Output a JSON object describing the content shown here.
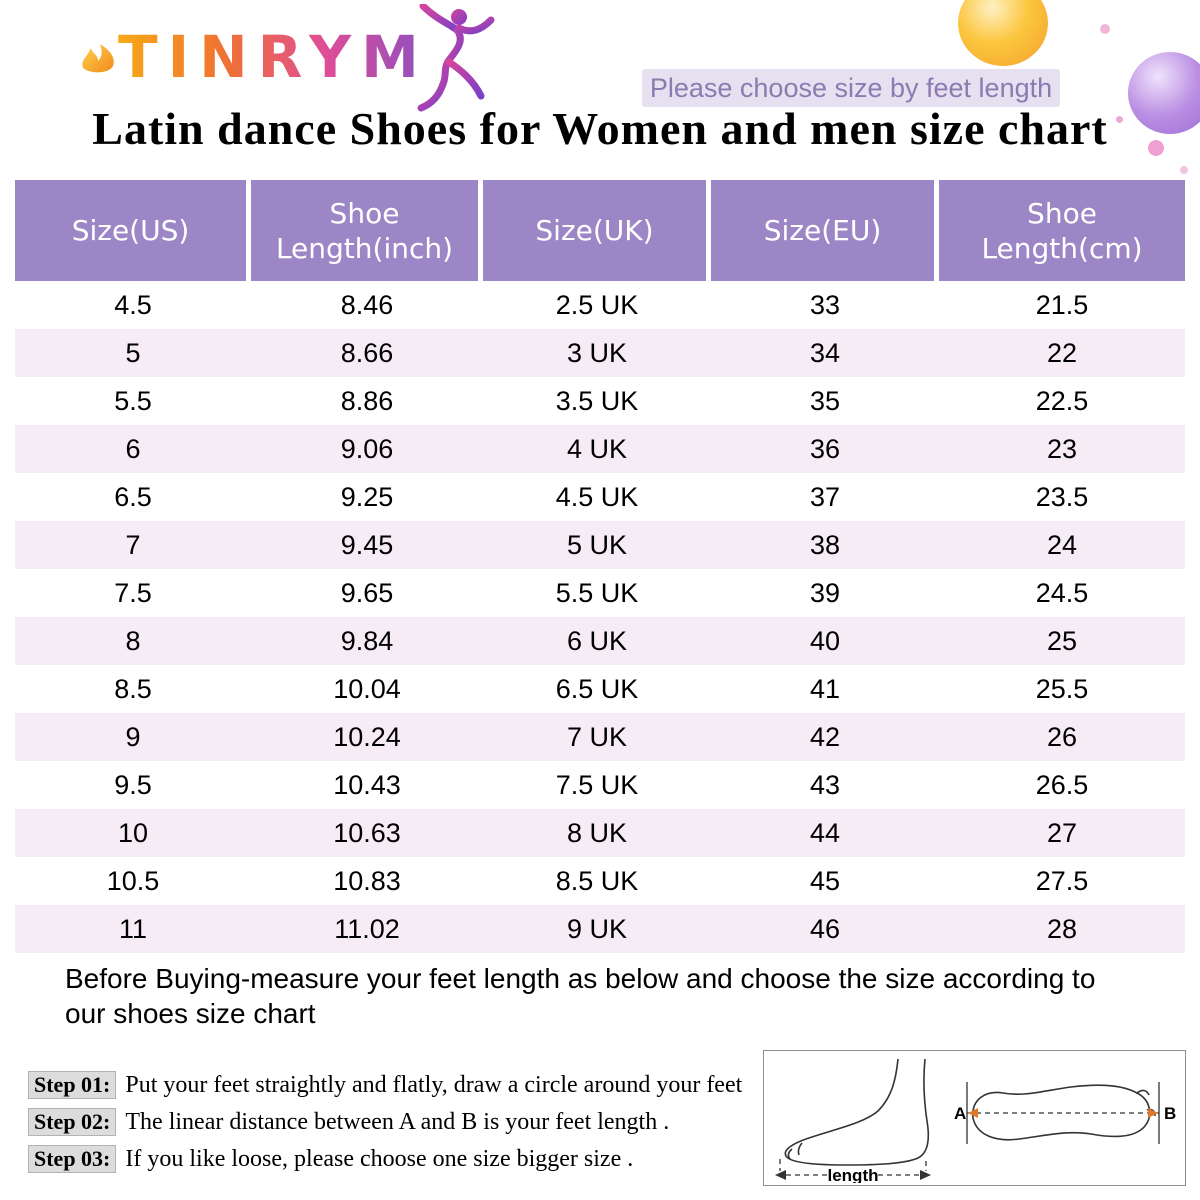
{
  "brand": {
    "logo_text": "TINRYM",
    "tagline": "Please choose size by feet length"
  },
  "title": "Latin dance Shoes for Women and men size chart",
  "table": {
    "columns": [
      "Size(US)",
      "Shoe Length(inch)",
      "Size(UK)",
      "Size(EU)",
      "Shoe Length(cm)"
    ],
    "rows": [
      [
        "4.5",
        "8.46",
        "2.5 UK",
        "33",
        "21.5"
      ],
      [
        "5",
        "8.66",
        "3 UK",
        "34",
        "22"
      ],
      [
        "5.5",
        "8.86",
        "3.5 UK",
        "35",
        "22.5"
      ],
      [
        "6",
        "9.06",
        "4 UK",
        "36",
        "23"
      ],
      [
        "6.5",
        "9.25",
        "4.5 UK",
        "37",
        "23.5"
      ],
      [
        "7",
        "9.45",
        "5 UK",
        "38",
        "24"
      ],
      [
        "7.5",
        "9.65",
        "5.5 UK",
        "39",
        "24.5"
      ],
      [
        "8",
        "9.84",
        "6 UK",
        "40",
        "25"
      ],
      [
        "8.5",
        "10.04",
        "6.5 UK",
        "41",
        "25.5"
      ],
      [
        "9",
        "10.24",
        "7 UK",
        "42",
        "26"
      ],
      [
        "9.5",
        "10.43",
        "7.5 UK",
        "43",
        "26.5"
      ],
      [
        "10",
        "10.63",
        "8 UK",
        "44",
        "27"
      ],
      [
        "10.5",
        "10.83",
        "8.5 UK",
        "45",
        "27.5"
      ],
      [
        "11",
        "11.02",
        "9 UK",
        "46",
        "28"
      ]
    ]
  },
  "note": "Before Buying-measure your feet length as below and choose the size  according to our shoes size chart",
  "steps": [
    {
      "label": "Step 01:",
      "text": "Put your feet straightly and flatly, draw a circle around your feet"
    },
    {
      "label": "Step 02:",
      "text": "The linear distance between A and B is your feet length ."
    },
    {
      "label": "Step 03:",
      "text": "If you like loose, please choose one size bigger size ."
    }
  ],
  "diagram": {
    "length_label": "length",
    "point_a": "A",
    "point_b": "B"
  },
  "colors": {
    "table_header": "#9c86c5",
    "row_alt": "#f5ecf6",
    "tagline_bg": "#e7e0f1",
    "tagline_text": "#8a7bb0",
    "accent_arrow": "#e0782a",
    "logo_gradient": [
      "#f8a917",
      "#f07330",
      "#df4d97",
      "#8d50c0"
    ]
  },
  "chart_data": {
    "type": "table",
    "title": "Latin dance Shoes for Women and men size chart",
    "columns": [
      "Size(US)",
      "Shoe Length(inch)",
      "Size(UK)",
      "Size(EU)",
      "Shoe Length(cm)"
    ],
    "rows": [
      [
        "4.5",
        "8.46",
        "2.5 UK",
        "33",
        "21.5"
      ],
      [
        "5",
        "8.66",
        "3 UK",
        "34",
        "22"
      ],
      [
        "5.5",
        "8.86",
        "3.5 UK",
        "35",
        "22.5"
      ],
      [
        "6",
        "9.06",
        "4 UK",
        "36",
        "23"
      ],
      [
        "6.5",
        "9.25",
        "4.5 UK",
        "37",
        "23.5"
      ],
      [
        "7",
        "9.45",
        "5 UK",
        "38",
        "24"
      ],
      [
        "7.5",
        "9.65",
        "5.5 UK",
        "39",
        "24.5"
      ],
      [
        "8",
        "9.84",
        "6 UK",
        "40",
        "25"
      ],
      [
        "8.5",
        "10.04",
        "6.5 UK",
        "41",
        "25.5"
      ],
      [
        "9",
        "10.24",
        "7 UK",
        "42",
        "26"
      ],
      [
        "9.5",
        "10.43",
        "7.5 UK",
        "43",
        "26.5"
      ],
      [
        "10",
        "10.63",
        "8 UK",
        "44",
        "27"
      ],
      [
        "10.5",
        "10.83",
        "8.5 UK",
        "45",
        "27.5"
      ],
      [
        "11",
        "11.02",
        "9 UK",
        "46",
        "28"
      ]
    ]
  }
}
